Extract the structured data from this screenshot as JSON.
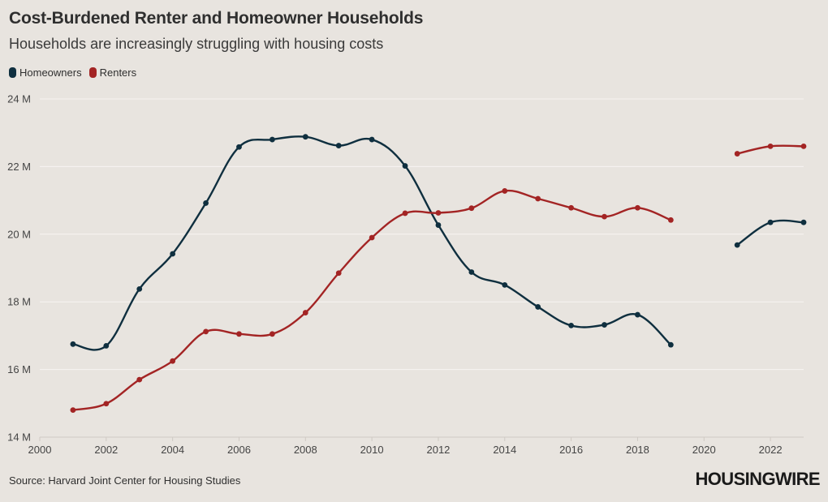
{
  "chart_data": {
    "type": "line",
    "title": "Cost-Burdened Renter and Homeowner Households",
    "subtitle": "Households are increasingly struggling with housing costs",
    "x_ticks": [
      2000,
      2002,
      2004,
      2006,
      2008,
      2010,
      2012,
      2014,
      2016,
      2018,
      2020,
      2022
    ],
    "y_ticks": [
      {
        "value": 14,
        "label": "14 M"
      },
      {
        "value": 16,
        "label": "16 M"
      },
      {
        "value": 18,
        "label": "18 M"
      },
      {
        "value": 20,
        "label": "20 M"
      },
      {
        "value": 22,
        "label": "22 M"
      },
      {
        "value": 24,
        "label": "24 M"
      }
    ],
    "xlim": [
      2000,
      2023
    ],
    "ylim": [
      14,
      24
    ],
    "grid": true,
    "legend_position": "top-left",
    "series": [
      {
        "name": "Homeowners",
        "color": "#0f2f3f",
        "segments": [
          [
            [
              2001,
              16.75
            ],
            [
              2002,
              16.7
            ],
            [
              2003,
              18.38
            ],
            [
              2004,
              19.42
            ],
            [
              2005,
              20.92
            ],
            [
              2006,
              22.58
            ],
            [
              2007,
              22.8
            ],
            [
              2008,
              22.88
            ],
            [
              2009,
              22.62
            ],
            [
              2010,
              22.8
            ],
            [
              2011,
              22.02
            ],
            [
              2012,
              20.27
            ],
            [
              2013,
              18.88
            ],
            [
              2014,
              18.5
            ],
            [
              2015,
              17.85
            ],
            [
              2016,
              17.3
            ],
            [
              2017,
              17.32
            ],
            [
              2018,
              17.62
            ],
            [
              2019,
              16.73
            ]
          ],
          [
            [
              2021,
              19.68
            ],
            [
              2022,
              20.35
            ],
            [
              2023,
              20.35
            ]
          ]
        ]
      },
      {
        "name": "Renters",
        "color": "#a32424",
        "segments": [
          [
            [
              2001,
              14.8
            ],
            [
              2002,
              14.99
            ],
            [
              2003,
              15.7
            ],
            [
              2004,
              16.25
            ],
            [
              2005,
              17.12
            ],
            [
              2006,
              17.05
            ],
            [
              2007,
              17.05
            ],
            [
              2008,
              17.68
            ],
            [
              2009,
              18.85
            ],
            [
              2010,
              19.9
            ],
            [
              2011,
              20.62
            ],
            [
              2012,
              20.63
            ],
            [
              2013,
              20.77
            ],
            [
              2014,
              21.28
            ],
            [
              2015,
              21.05
            ],
            [
              2016,
              20.78
            ],
            [
              2017,
              20.52
            ],
            [
              2018,
              20.78
            ],
            [
              2019,
              20.42
            ]
          ],
          [
            [
              2021,
              22.38
            ],
            [
              2022,
              22.6
            ],
            [
              2023,
              22.6
            ]
          ]
        ]
      }
    ]
  },
  "source": "Source: Harvard Joint Center for Housing Studies",
  "brand": "HOUSINGWIRE"
}
